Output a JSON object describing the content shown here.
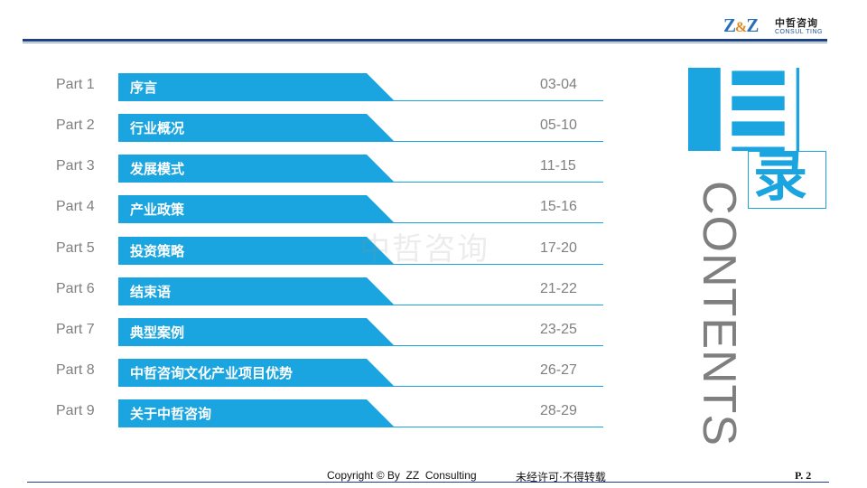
{
  "header": {
    "logo_mark_left": "Z",
    "logo_mark_amp": "&",
    "logo_mark_right": "Z",
    "logo_cn": "中哲咨询",
    "logo_en": "CONSUL TING"
  },
  "accent_color": "#1aa5e0",
  "rule_color": "#1f3f86",
  "toc": [
    {
      "part": "Part 1",
      "title": "序言",
      "pages": "03-04"
    },
    {
      "part": "Part 2",
      "title": "行业概况",
      "pages": "05-10"
    },
    {
      "part": "Part 3",
      "title": "发展模式",
      "pages": "11-15"
    },
    {
      "part": "Part 4",
      "title": "产业政策",
      "pages": "15-16"
    },
    {
      "part": "Part 5",
      "title": "投资策略",
      "pages": "17-20"
    },
    {
      "part": "Part 6",
      "title": "结束语",
      "pages": "21-22"
    },
    {
      "part": "Part 7",
      "title": "典型案例",
      "pages": "23-25"
    },
    {
      "part": "Part 8",
      "title": "中哲咨询文化产业项目优势",
      "pages": "26-27"
    },
    {
      "part": "Part 9",
      "title": "关于中哲咨询",
      "pages": "28-29"
    }
  ],
  "watermark": "中哲咨询",
  "side_title": {
    "mu": "目",
    "lu": "录",
    "contents": "CONTENTS"
  },
  "footer": {
    "copyright": "Copyright © By  ZZ  Consulting",
    "note": "未经许可·不得转载",
    "page": "P. 2"
  }
}
